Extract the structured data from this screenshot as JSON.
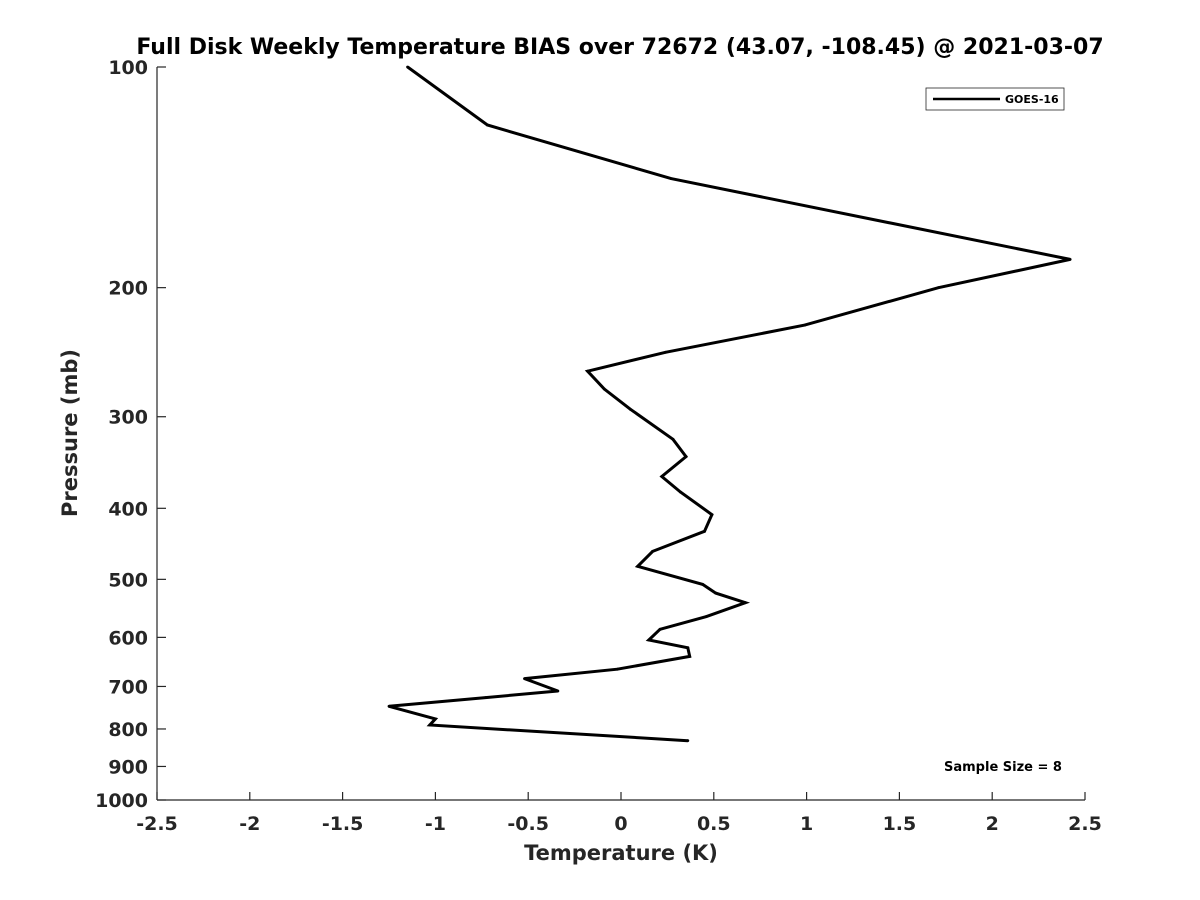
{
  "chart_data": {
    "type": "line",
    "title": "Full Disk Weekly Temperature BIAS over 72672 (43.07, -108.45) @ 2021-03-07",
    "xlabel": "Temperature (K)",
    "ylabel": "Pressure (mb)",
    "xlim": [
      -2.5,
      2.5
    ],
    "ylim": [
      100,
      1000
    ],
    "yscale": "log",
    "ydirection": "reverse",
    "xticks": [
      -2.5,
      -2,
      -1.5,
      -1,
      -0.5,
      0,
      0.5,
      1,
      1.5,
      2,
      2.5
    ],
    "xtick_labels": [
      "-2.5",
      "-2",
      "-1.5",
      "-1",
      "-0.5",
      "0",
      "0.5",
      "1",
      "1.5",
      "2",
      "2.5"
    ],
    "yticks": [
      100,
      200,
      300,
      400,
      500,
      600,
      700,
      800,
      900,
      1000
    ],
    "ytick_labels": [
      "100",
      "200",
      "300",
      "400",
      "500",
      "600",
      "700",
      "800",
      "900",
      "1000"
    ],
    "grid": false,
    "legend_position": "top-right",
    "annotation": "Sample Size = 8",
    "colors": {
      "line": "#000000",
      "axis": "#262626"
    },
    "series": [
      {
        "name": "GOES-16",
        "x": [
          -1.15,
          -0.72,
          0.27,
          2.42,
          1.71,
          0.99,
          0.24,
          -0.18,
          -0.09,
          0.05,
          0.28,
          0.35,
          0.22,
          0.32,
          0.49,
          0.45,
          0.17,
          0.09,
          0.44,
          0.51,
          0.67,
          0.46,
          0.21,
          0.15,
          0.36,
          0.37,
          -0.02,
          -0.52,
          -0.34,
          -0.73,
          -1.25,
          -1.0,
          -1.03,
          0.36
        ],
        "y": [
          100,
          120,
          142,
          183,
          200,
          225,
          245,
          260,
          275,
          293,
          322,
          340,
          362,
          380,
          408,
          430,
          458,
          480,
          508,
          522,
          538,
          562,
          585,
          605,
          620,
          637,
          663,
          683,
          710,
          725,
          745,
          775,
          790,
          830
        ]
      }
    ]
  }
}
